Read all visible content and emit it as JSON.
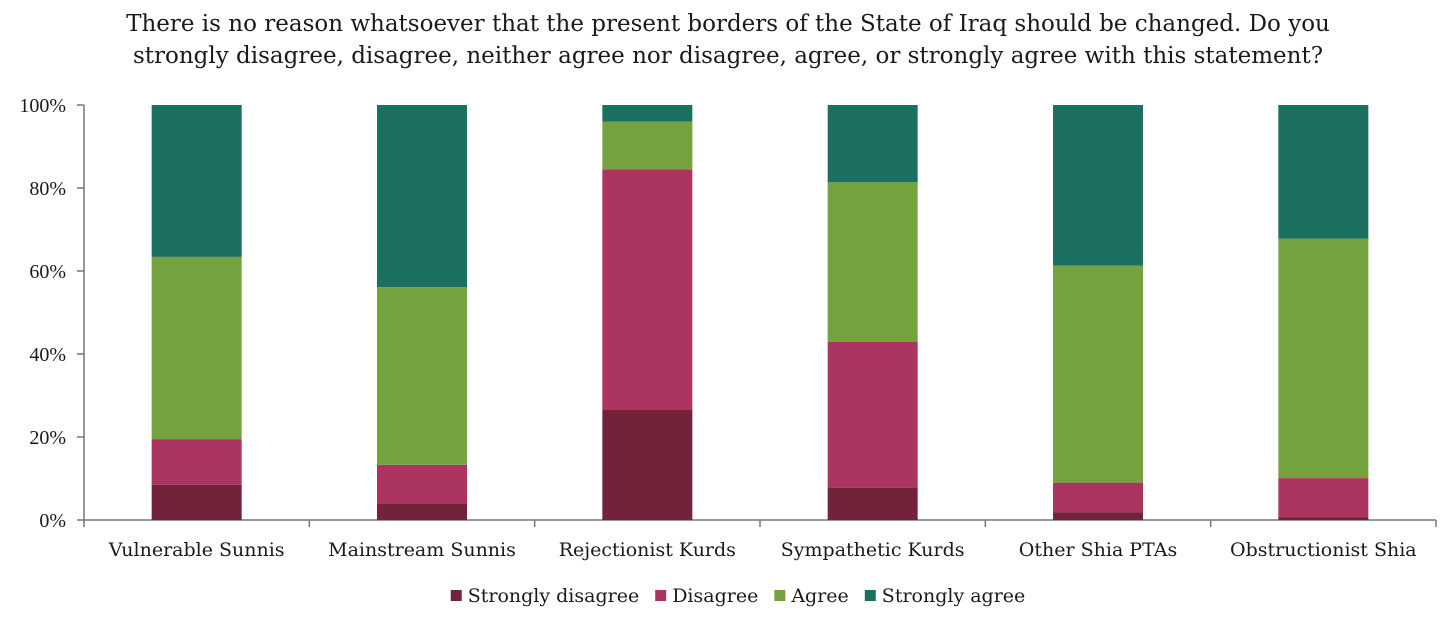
{
  "chart_data": {
    "type": "bar",
    "stacked": true,
    "title_lines": [
      "There is no reason whatsoever that the present borders of the State of Iraq should be changed. Do you",
      "strongly disagree, disagree, neither agree nor disagree, agree, or strongly agree with this statement?"
    ],
    "categories": [
      "Vulnerable Sunnis",
      "Mainstream Sunnis",
      "Rejectionist Kurds",
      "Sympathetic Kurds",
      "Other Shia PTAs",
      "Obstructionist Shia"
    ],
    "series": [
      {
        "name": "Strongly disagree",
        "color": "#722339",
        "values": [
          8.5,
          4.0,
          26.5,
          7.8,
          1.8,
          0.7
        ]
      },
      {
        "name": "Disagree",
        "color": "#ac3461",
        "values": [
          10.9,
          9.3,
          58.0,
          35.1,
          7.2,
          9.4
        ]
      },
      {
        "name": "Agree",
        "color": "#73a23e",
        "values": [
          44.0,
          42.8,
          11.5,
          38.5,
          52.3,
          57.7
        ]
      },
      {
        "name": "Strongly agree",
        "color": "#1c7061",
        "values": [
          36.6,
          43.9,
          4.0,
          18.6,
          38.7,
          32.2
        ]
      }
    ],
    "y_ticks": [
      "0%",
      "20%",
      "40%",
      "60%",
      "80%",
      "100%"
    ],
    "ylim": [
      0,
      100
    ],
    "grid": false,
    "legend_position": "bottom"
  }
}
